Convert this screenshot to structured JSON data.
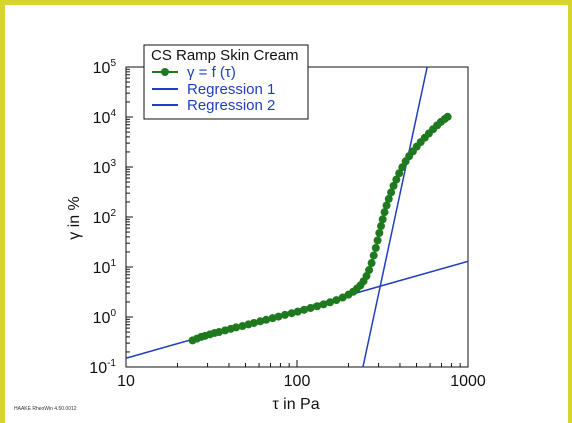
{
  "chart_data": {
    "type": "scatter",
    "scale": {
      "x": "log",
      "y": "log"
    },
    "xlim": [
      10,
      1000
    ],
    "ylim": [
      0.1,
      100000
    ],
    "xlabel": "τ in Pa",
    "ylabel": "γ in %",
    "x_ticks": [
      {
        "value": 10,
        "label": "10"
      },
      {
        "value": 100,
        "label": "100"
      },
      {
        "value": 1000,
        "label": "1000"
      }
    ],
    "y_ticks": [
      {
        "value": 0.1,
        "base": "10",
        "exp": "-1"
      },
      {
        "value": 1,
        "base": "10",
        "exp": "0"
      },
      {
        "value": 10,
        "base": "10",
        "exp": "1"
      },
      {
        "value": 100,
        "base": "10",
        "exp": "2"
      },
      {
        "value": 1000,
        "base": "10",
        "exp": "3"
      },
      {
        "value": 10000,
        "base": "10",
        "exp": "4"
      },
      {
        "value": 100000,
        "base": "10",
        "exp": "5"
      }
    ],
    "legend": {
      "title": "CS Ramp Skin Cream",
      "placement": "top-left",
      "entries": [
        "γ = f (τ)",
        "Regression 1",
        "Regression 2"
      ]
    },
    "series": [
      {
        "name": "γ = f (τ)",
        "type": "line-with-markers",
        "color": "#1f7a1f",
        "x": [
          24.5,
          26,
          27.5,
          29,
          31,
          33,
          35,
          38,
          41,
          44,
          48,
          52,
          56,
          61,
          66,
          72,
          78,
          85,
          93,
          101,
          110,
          120,
          131,
          143,
          156,
          170,
          185,
          200,
          213,
          224,
          235,
          245,
          255,
          264,
          273,
          281,
          289,
          296,
          303,
          310,
          317,
          325,
          334,
          344,
          355,
          367,
          381,
          396,
          413,
          432,
          453,
          476,
          501,
          529,
          559,
          591,
          625,
          660,
          695,
          730,
          760
        ],
        "y": [
          0.34,
          0.37,
          0.4,
          0.42,
          0.45,
          0.48,
          0.5,
          0.54,
          0.58,
          0.62,
          0.66,
          0.71,
          0.76,
          0.82,
          0.88,
          0.95,
          1.02,
          1.1,
          1.19,
          1.28,
          1.39,
          1.51,
          1.64,
          1.79,
          1.97,
          2.18,
          2.45,
          2.8,
          3.2,
          3.7,
          4.3,
          5.2,
          6.6,
          8.7,
          12,
          17,
          24,
          34,
          48,
          66,
          90,
          125,
          170,
          230,
          310,
          420,
          560,
          750,
          990,
          1300,
          1650,
          2050,
          2550,
          3150,
          3850,
          4700,
          5700,
          6800,
          8000,
          9100,
          10100
        ]
      },
      {
        "name": "Regression 1",
        "type": "line",
        "color": "#1f3fbf",
        "x": [
          10,
          1000
        ],
        "y": [
          0.15,
          13
        ]
      },
      {
        "name": "Regression 2",
        "type": "line",
        "color": "#1f3fbf",
        "x": [
          243,
          577
        ],
        "y": [
          0.1,
          100000
        ]
      }
    ]
  },
  "footer_text": "HAAKE RheoWin 4.50.0012"
}
